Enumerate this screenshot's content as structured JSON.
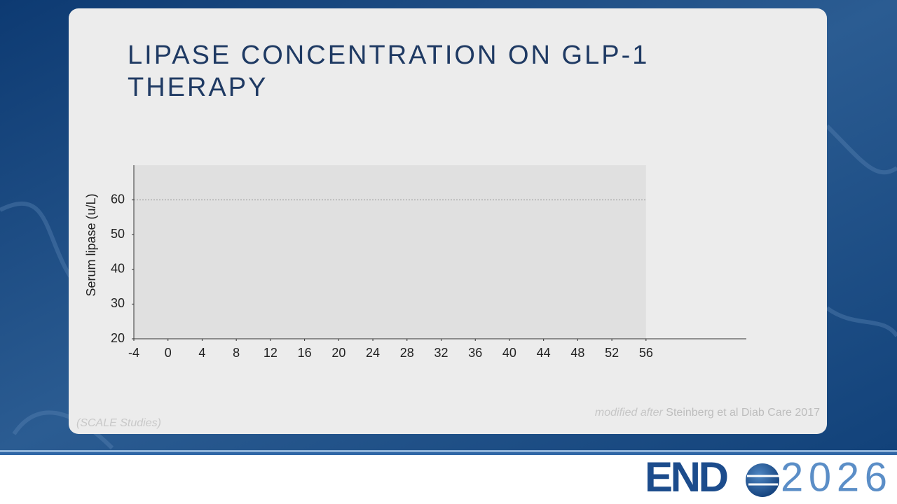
{
  "chart_data": {
    "type": "line",
    "title": "LIPASE CONCENTRATION ON GLP-1 THERAPY",
    "ylabel": "Serum lipase (u/L)",
    "xlim": [
      -4,
      68
    ],
    "xticks": [
      -4,
      0,
      4,
      8,
      12,
      16,
      20,
      24,
      28,
      32,
      36,
      40,
      44,
      48,
      52,
      56
    ],
    "ylim": [
      20,
      70
    ],
    "yticks": [
      20,
      30,
      40,
      50,
      60
    ],
    "reference_line": 60
  },
  "footnote": "(SCALE Studies)",
  "source": {
    "prefix": "modified after",
    "citation": "Steinberg et al Diab Care 2017"
  },
  "logo": {
    "name": "END",
    "year": "2026"
  }
}
